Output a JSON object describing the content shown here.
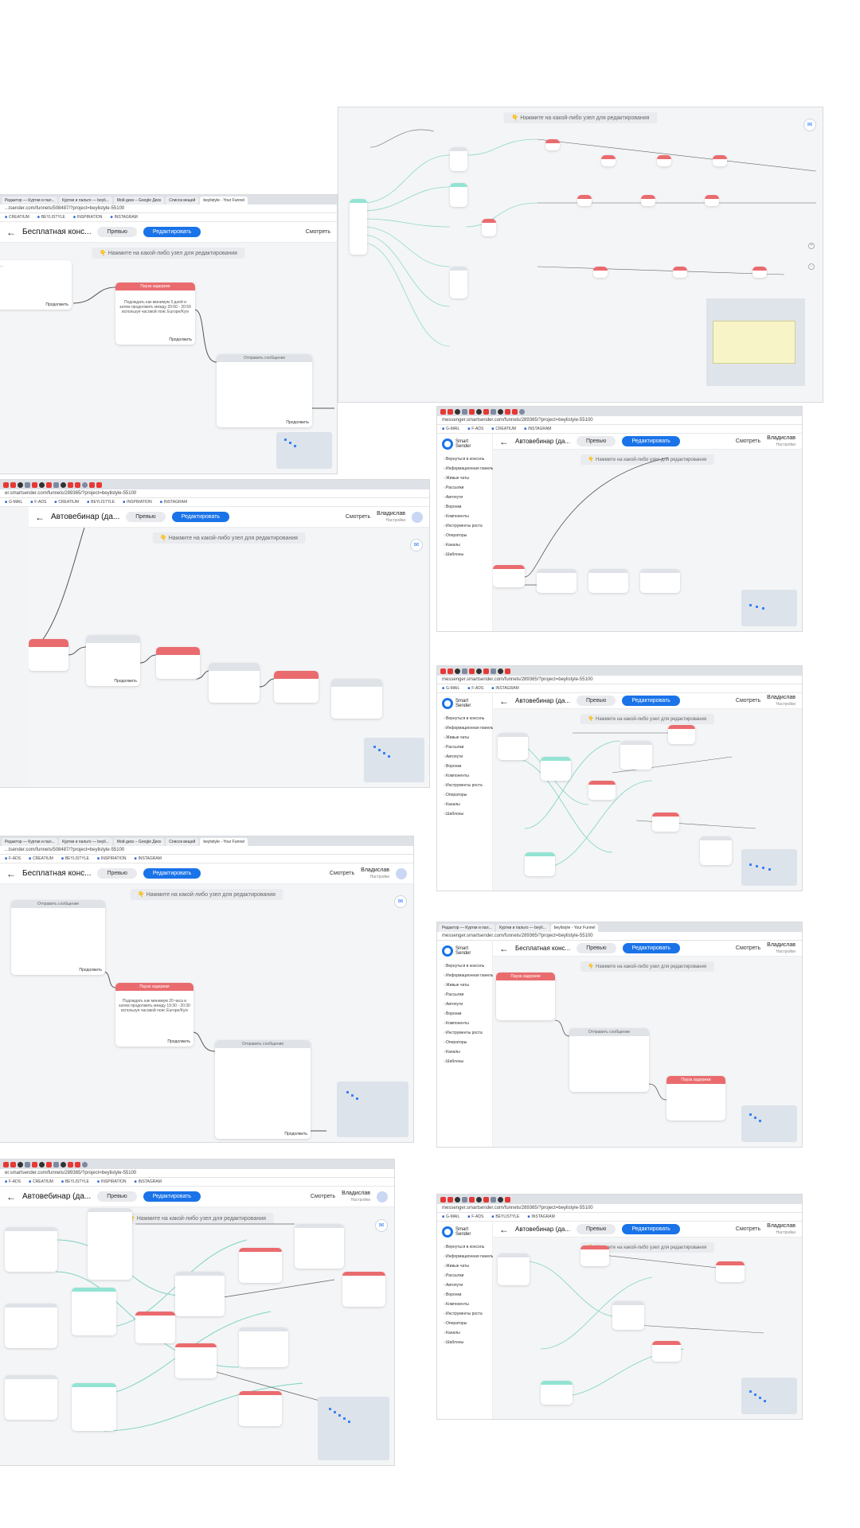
{
  "ui": {
    "hint": "👇 Нажмите на какой-либо узел для редактирования",
    "preview": "Превью",
    "edit": "Редактировать",
    "watch": "Смотреть",
    "continue": "Продолжить",
    "user_name": "Владислав",
    "user_sub": "Настройки",
    "title_free": "Бесплатная конс...",
    "title_auto": "Автовебинар (да..."
  },
  "nodes": {
    "pause": "Пауза задержки",
    "send": "Отправить сообщение",
    "pause_text_a": "Подождать как минимум 3 дней и затем продолжить между 20:00 - 20:59 используя часовой пояс Europe/Kyiv",
    "pause_text_b": "Подождать как минимум 20 часа и затем продолжить между 19:30 - 20:30 используя часовой пояс Europe/Kyiv"
  },
  "browser": {
    "tab_active": "beylistyle - Your Funnel",
    "tab_1": "Редактор — Куртки и пал...",
    "tab_2": "Куртки и пальто — beyli...",
    "tab_3": "Мой диск – Google Диск",
    "tab_4": "Список вещей",
    "url_free": "...tsender.com/funnels/508487/?project=beylistyle-55100",
    "url_smart": "messenger.smartsender.com/funnels/289365/?project=beylistyle-55100",
    "url_short": "er.smartsender.com/funnels/289365/?project=beylistyle-55100",
    "bm_gmail": "G-MAIL",
    "bm_fads": "F-ADS",
    "bm_creatium": "CREATIUM",
    "bm_beylistyle": "BEYLISTYLE",
    "bm_inspiration": "INSPIRATION",
    "bm_instagram": "INSTAGRAM"
  },
  "sidebar": {
    "logo_line1": "Smart",
    "logo_line2": "Sender",
    "back_console": "Вернуться в консоль",
    "items": [
      "Информационная панель",
      "Живые чаты",
      "Рассылки",
      "Автопути",
      "Воронки",
      "Компоненты",
      "Инструменты роста",
      "Операторы",
      "Каналы",
      "Шаблоны"
    ]
  }
}
